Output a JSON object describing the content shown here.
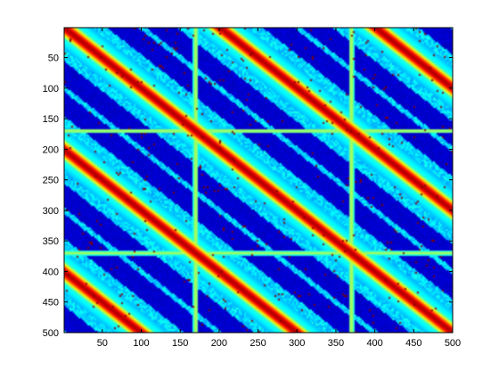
{
  "chart_data": {
    "type": "heatmap",
    "title": "",
    "xlabel": "",
    "ylabel": "",
    "xlim": [
      1,
      500
    ],
    "ylim": [
      1,
      500
    ],
    "y_reversed": true,
    "grid": false,
    "colormap": "jet",
    "colormap_stops": [
      "#00008f",
      "#0000ff",
      "#0080ff",
      "#00ffff",
      "#80ff80",
      "#ffff00",
      "#ff8000",
      "#ff0000",
      "#800000"
    ],
    "x_ticks": [
      50,
      100,
      150,
      200,
      250,
      300,
      350,
      400,
      450,
      500
    ],
    "x_tick_labels": [
      "50",
      "100",
      "150",
      "200",
      "250",
      "300",
      "350",
      "400",
      "450",
      "500"
    ],
    "y_ticks": [
      50,
      100,
      150,
      200,
      250,
      300,
      350,
      400,
      450,
      500
    ],
    "y_tick_labels": [
      "50",
      "100",
      "150",
      "200",
      "250",
      "300",
      "350",
      "400",
      "450",
      "500"
    ],
    "description_values": {
      "main_diagonal_band": "high similarity along x = y",
      "repeat_period": 200,
      "secondary_diagonal_offsets": [
        -200,
        200
      ],
      "transition_rows": [
        170,
        370
      ],
      "transition_cols": [
        170,
        370
      ]
    }
  }
}
